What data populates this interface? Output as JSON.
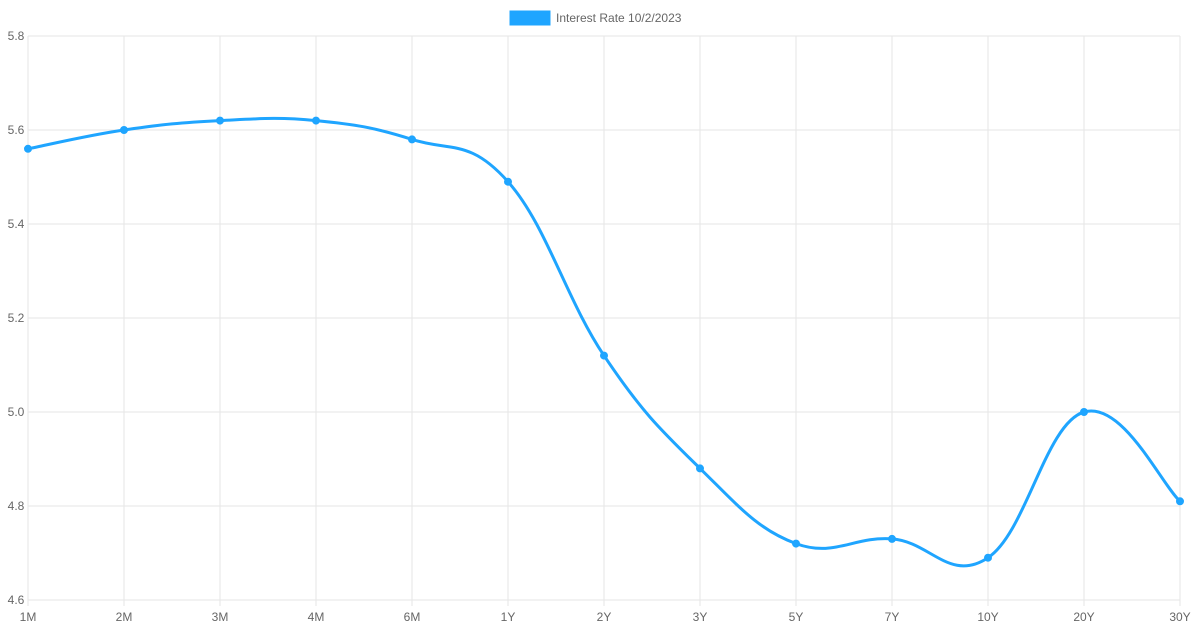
{
  "chart_data": {
    "type": "line",
    "title": "",
    "xlabel": "",
    "ylabel": "",
    "categories": [
      "1M",
      "2M",
      "3M",
      "4M",
      "6M",
      "1Y",
      "2Y",
      "3Y",
      "5Y",
      "7Y",
      "10Y",
      "20Y",
      "30Y"
    ],
    "series": [
      {
        "name": "Interest Rate 10/2/2023",
        "values": [
          5.56,
          5.6,
          5.62,
          5.62,
          5.58,
          5.49,
          5.12,
          4.88,
          4.72,
          4.73,
          4.69,
          5.0,
          4.81
        ],
        "color": "#1fa5ff"
      }
    ],
    "ylim": [
      4.6,
      5.8
    ],
    "yticks": [
      4.6,
      4.8,
      5.0,
      5.2,
      5.4,
      5.6,
      5.8
    ],
    "grid": true,
    "legend_position": "top-center",
    "colors": {
      "grid": "#e5e5e5",
      "tick_text": "#666666",
      "line": "#1fa5ff"
    }
  }
}
